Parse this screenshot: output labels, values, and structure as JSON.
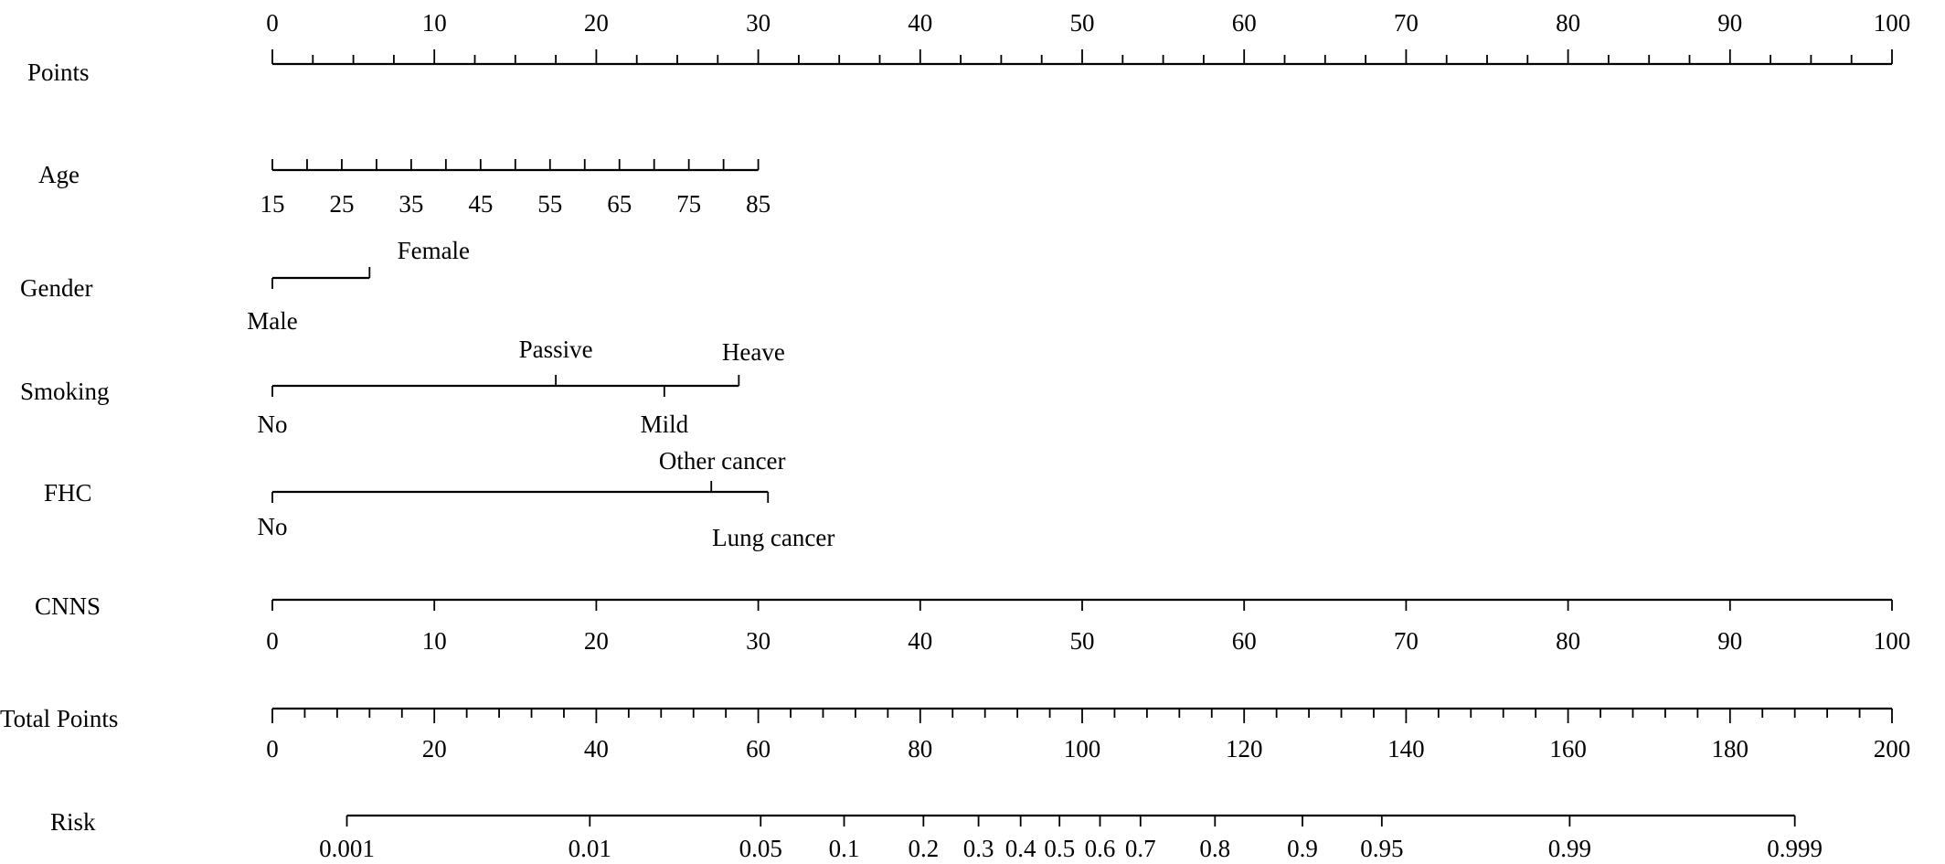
{
  "chart_data": {
    "type": "nomogram",
    "scales": [
      {
        "label": "Points",
        "range": [
          0,
          100
        ],
        "major_ticks": [
          0,
          10,
          20,
          30,
          40,
          50,
          60,
          70,
          80,
          90,
          100
        ],
        "minor_step": 2.5,
        "tick_labels": [
          "0",
          "10",
          "20",
          "30",
          "40",
          "50",
          "60",
          "70",
          "80",
          "90",
          "100"
        ]
      },
      {
        "label": "Age",
        "values": [
          15,
          20,
          25,
          30,
          35,
          40,
          45,
          50,
          55,
          60,
          65,
          70,
          75,
          80,
          85
        ],
        "tick_labels": [
          "15",
          "25",
          "35",
          "45",
          "55",
          "65",
          "75",
          "85"
        ],
        "points_at_min": 0,
        "points_at_max": 30
      },
      {
        "label": "Gender",
        "levels": [
          {
            "name": "Male",
            "points": 0
          },
          {
            "name": "Female",
            "points": 6
          }
        ]
      },
      {
        "label": "Smoking",
        "levels": [
          {
            "name": "No",
            "points": 0
          },
          {
            "name": "Passive",
            "points": 17.5
          },
          {
            "name": "Mild",
            "points": 24.2
          },
          {
            "name": "Heave",
            "points": 28.8
          }
        ]
      },
      {
        "label": "FHC",
        "levels": [
          {
            "name": "No",
            "points": 0
          },
          {
            "name": "Other cancer",
            "points": 27.1
          },
          {
            "name": "Lung cancer",
            "points": 30.6
          }
        ]
      },
      {
        "label": "CNNS",
        "range": [
          0,
          100
        ],
        "tick_labels": [
          "0",
          "10",
          "20",
          "30",
          "40",
          "50",
          "60",
          "70",
          "80",
          "90",
          "100"
        ],
        "points_per_unit": 1
      },
      {
        "label": "Total Points",
        "range": [
          0,
          200
        ],
        "major_ticks": [
          0,
          20,
          40,
          60,
          80,
          100,
          120,
          140,
          160,
          180,
          200
        ],
        "minor_step": 4,
        "tick_labels": [
          "0",
          "20",
          "40",
          "60",
          "80",
          "100",
          "120",
          "140",
          "160",
          "180",
          "200"
        ]
      },
      {
        "label": "Risk",
        "values": [
          0.001,
          0.01,
          0.05,
          0.1,
          0.2,
          0.3,
          0.4,
          0.5,
          0.6,
          0.7,
          0.8,
          0.9,
          0.95,
          0.99,
          0.999
        ],
        "tick_labels": [
          "0.001",
          "0.01",
          "0.05",
          "0.1",
          "0.2",
          "0.3",
          "0.4",
          "0.5",
          "0.6",
          "0.7",
          "0.8",
          "0.9",
          "0.95",
          "0.99",
          "0.999"
        ],
        "total_points_at_values": [
          9.2,
          39.2,
          60.3,
          70.6,
          80.4,
          87.2,
          92.4,
          97.2,
          102.2,
          107.2,
          116.4,
          127.2,
          137.0,
          160.2,
          188.0
        ]
      }
    ]
  }
}
